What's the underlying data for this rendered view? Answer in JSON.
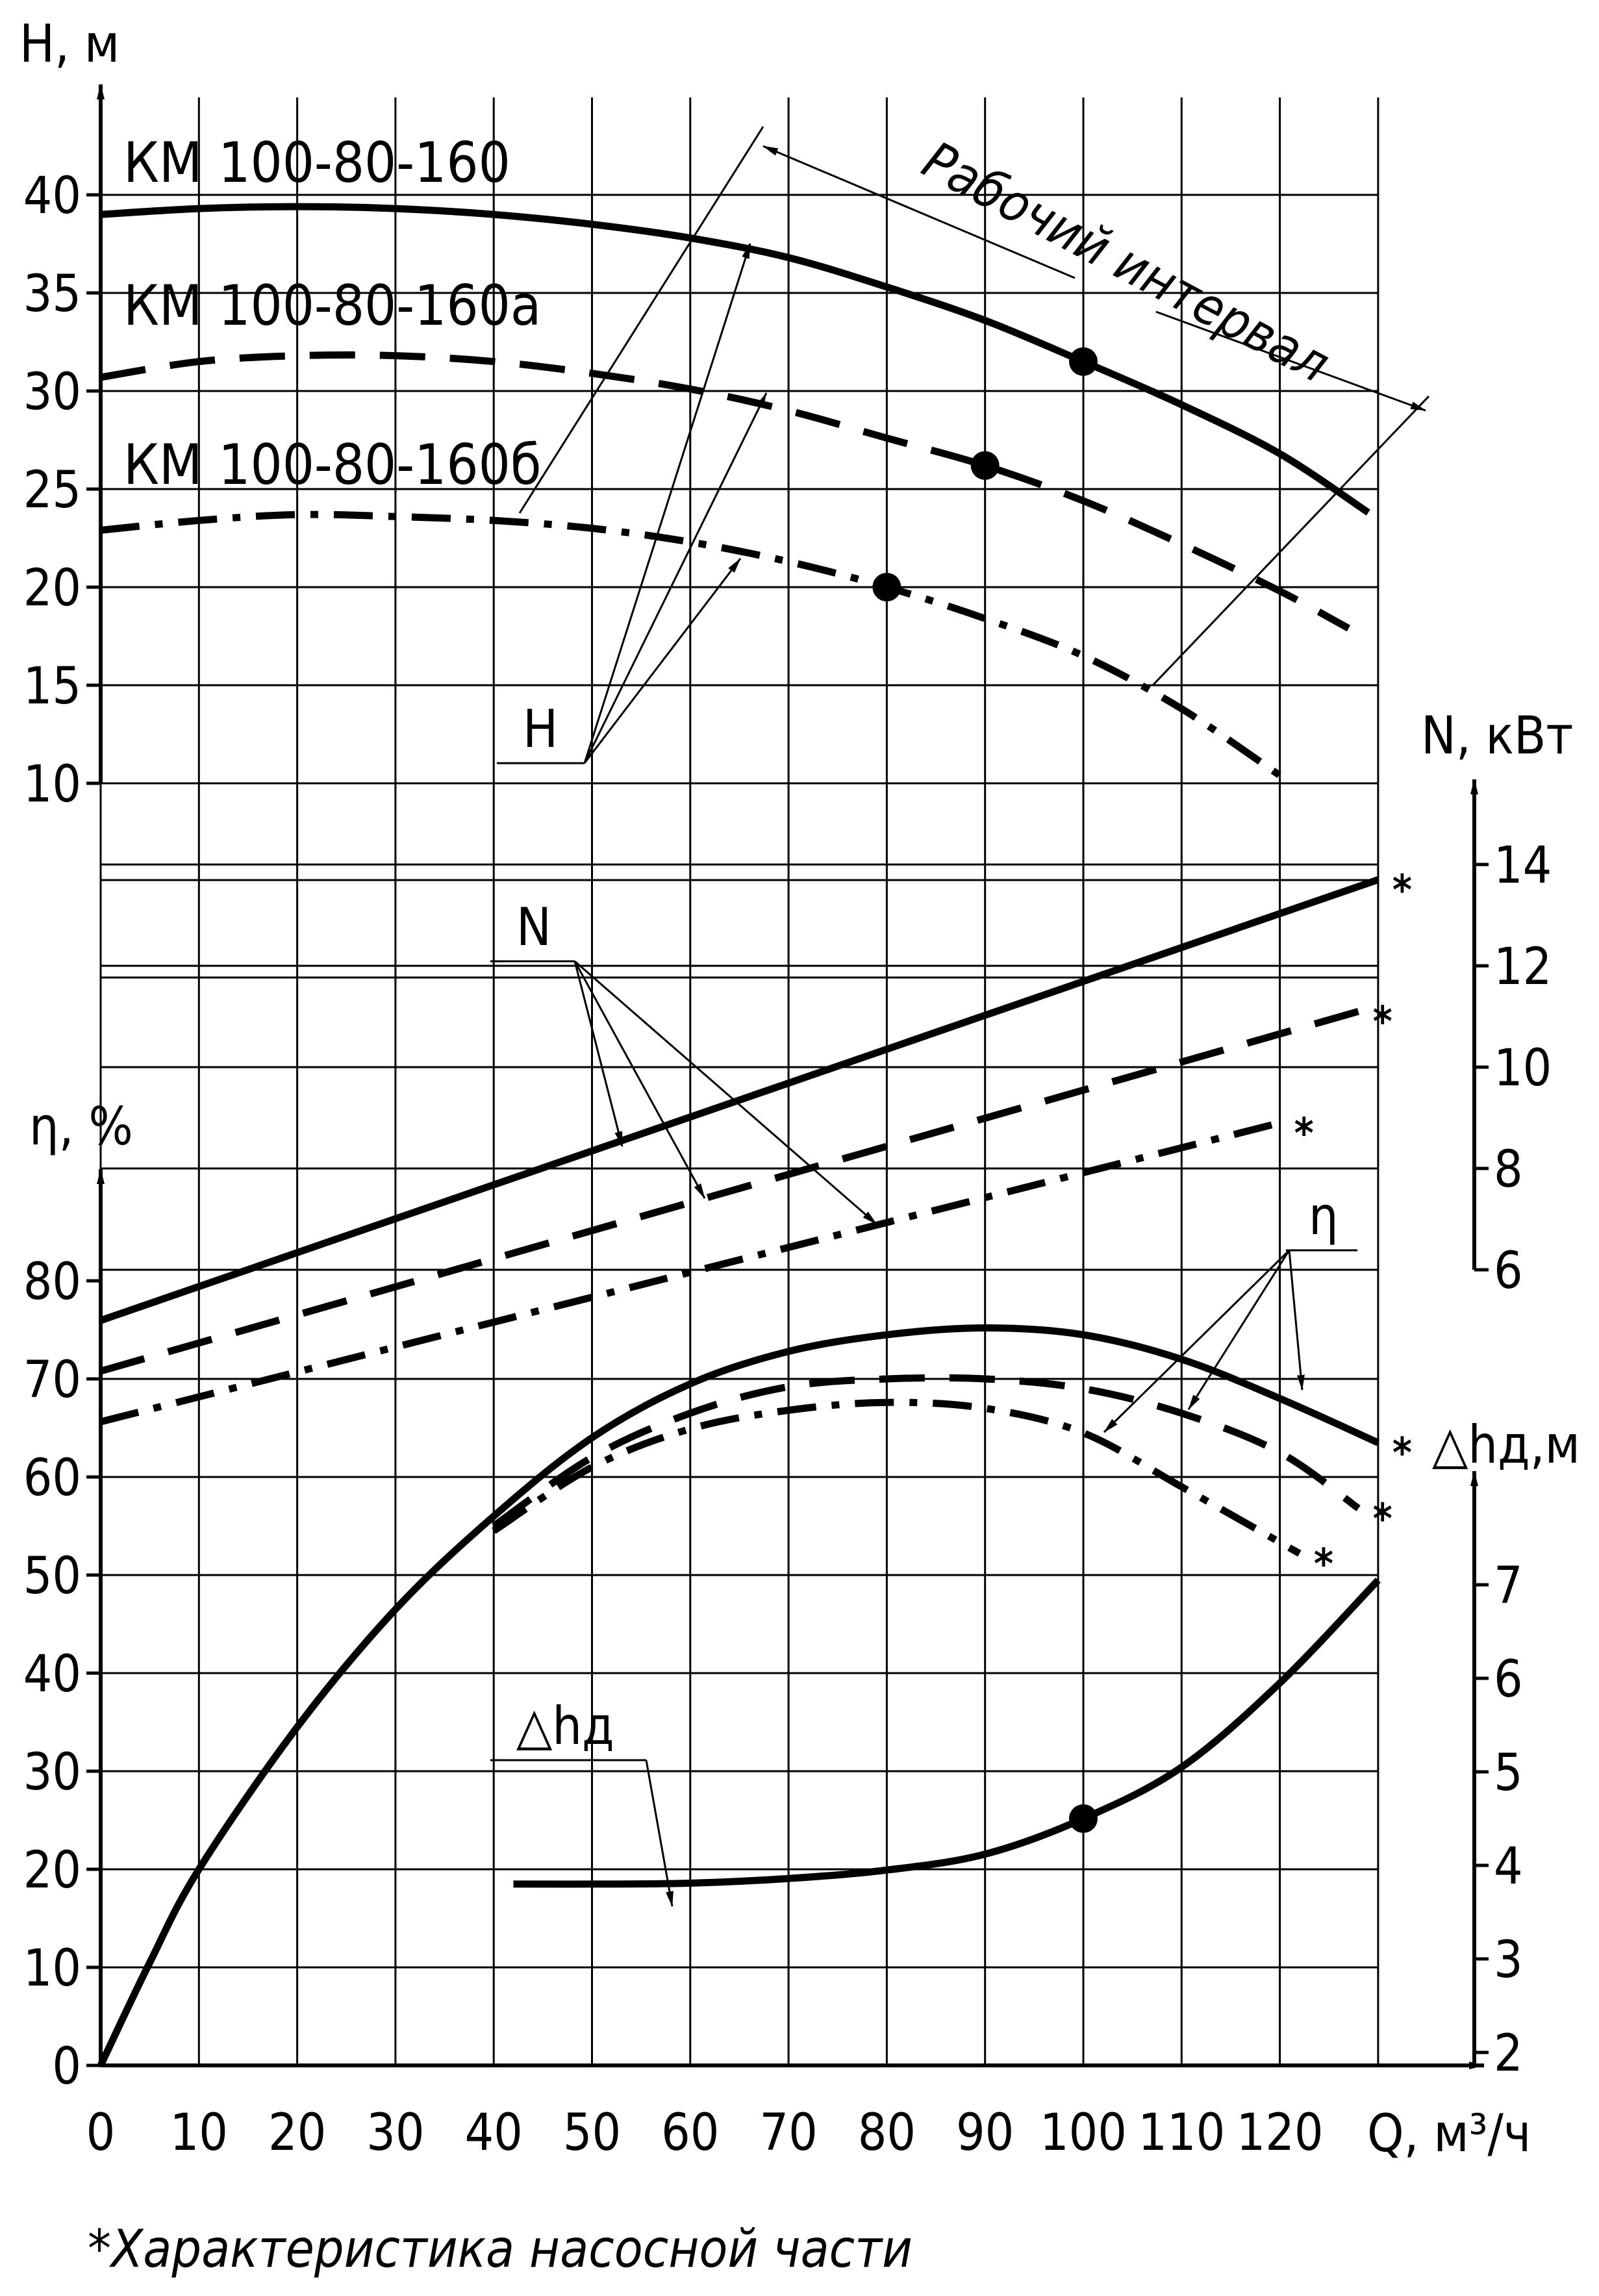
{
  "chart_data": {
    "type": "line",
    "models": [
      {
        "name": "КМ 100-80-160",
        "style": "solid"
      },
      {
        "name": "КМ 100-80-160а",
        "style": "dashed"
      },
      {
        "name": "КМ 100-80-160б",
        "style": "dashdot"
      }
    ],
    "x": {
      "label": "Q, м³/ч",
      "min": 0,
      "max": 130,
      "ticks": [
        0,
        10,
        20,
        30,
        40,
        50,
        60,
        70,
        80,
        90,
        100,
        110,
        120
      ]
    },
    "axes": {
      "H": {
        "label": "H, м",
        "ticks": [
          10,
          15,
          20,
          25,
          30,
          35,
          40
        ]
      },
      "N": {
        "label": "N, кВт",
        "ticks": [
          6,
          8,
          10,
          12,
          14
        ]
      },
      "eta": {
        "label": "η, %",
        "ticks": [
          0,
          10,
          20,
          30,
          40,
          50,
          60,
          70,
          80
        ]
      },
      "dh": {
        "label": "△hд,м",
        "ticks": [
          2,
          3,
          4,
          5,
          6,
          7
        ]
      }
    },
    "curve_labels": {
      "H": "H",
      "N": "N",
      "eta": "η",
      "dh": "△hд"
    },
    "working_range_label": "Рабочий интервал",
    "footnote": "*Характеристика насосной части",
    "star": "*",
    "series": {
      "H": [
        {
          "model": "КМ 100-80-160",
          "x": [
            0,
            10,
            20,
            30,
            40,
            50,
            60,
            70,
            80,
            90,
            100,
            110,
            120,
            129
          ],
          "y": [
            39,
            39.3,
            39.4,
            39.3,
            39,
            38.5,
            37.8,
            36.8,
            35.3,
            33.6,
            31.5,
            29.3,
            26.8,
            23.8
          ]
        },
        {
          "model": "КМ 100-80-160а",
          "x": [
            0,
            10,
            20,
            30,
            40,
            50,
            60,
            70,
            80,
            90,
            100,
            110,
            120,
            127
          ],
          "y": [
            30.7,
            31.5,
            31.8,
            31.8,
            31.5,
            30.9,
            30.1,
            29,
            27.6,
            26.2,
            24.4,
            22.2,
            19.8,
            17.9
          ]
        },
        {
          "model": "КМ 100-80-160б",
          "x": [
            0,
            10,
            20,
            30,
            40,
            50,
            60,
            70,
            80,
            90,
            100,
            110,
            120
          ],
          "y": [
            22.9,
            23.4,
            23.7,
            23.6,
            23.4,
            23,
            22.3,
            21.3,
            20,
            18.4,
            16.5,
            13.8,
            10.4
          ]
        }
      ],
      "N": [
        {
          "model": "КМ 100-80-160",
          "x": [
            0,
            130
          ],
          "y": [
            5.0,
            13.7
          ],
          "starred": true
        },
        {
          "model": "КМ 100-80-160а",
          "x": [
            0,
            128
          ],
          "y": [
            4.0,
            11.1
          ],
          "starred": true
        },
        {
          "model": "КМ 100-80-160б",
          "x": [
            0,
            120
          ],
          "y": [
            3.0,
            8.9
          ],
          "starred": true
        }
      ],
      "eta": [
        {
          "model": "КМ 100-80-160",
          "x": [
            0,
            5,
            10,
            20,
            30,
            40,
            50,
            60,
            70,
            80,
            90,
            100,
            110,
            120,
            130
          ],
          "y": [
            0,
            10.5,
            20,
            34.5,
            46.5,
            56,
            64,
            69.5,
            72.8,
            74.5,
            75.2,
            74.5,
            72,
            68,
            63.5
          ],
          "starred": true
        },
        {
          "model": "КМ 100-80-160а",
          "x": [
            40,
            50,
            60,
            70,
            80,
            90,
            100,
            110,
            120,
            128
          ],
          "y": [
            55,
            62,
            66.5,
            69.2,
            70,
            70,
            69,
            66.5,
            62.5,
            56.8
          ],
          "starred": true
        },
        {
          "model": "КМ 100-80-160б",
          "x": [
            40,
            50,
            60,
            70,
            80,
            90,
            100,
            110,
            122
          ],
          "y": [
            54.5,
            61,
            64.9,
            66.8,
            67.6,
            67,
            64.5,
            59,
            52.2
          ],
          "starred": true
        }
      ],
      "dh": [
        {
          "model": "all",
          "x": [
            42,
            50,
            60,
            70,
            80,
            90,
            100,
            110,
            120,
            130
          ],
          "y": [
            3.8,
            3.8,
            3.81,
            3.86,
            3.95,
            4.12,
            4.5,
            5.05,
            5.95,
            7.05
          ]
        }
      ]
    },
    "bep_points": [
      {
        "curve": "H",
        "model": "КМ 100-80-160",
        "x": 100,
        "y": 31.5
      },
      {
        "curve": "H",
        "model": "КМ 100-80-160а",
        "x": 90,
        "y": 26.2
      },
      {
        "curve": "H",
        "model": "КМ 100-80-160б",
        "x": 80,
        "y": 20
      },
      {
        "curve": "dh",
        "model": "all",
        "x": 100,
        "y": 4.5
      }
    ]
  }
}
